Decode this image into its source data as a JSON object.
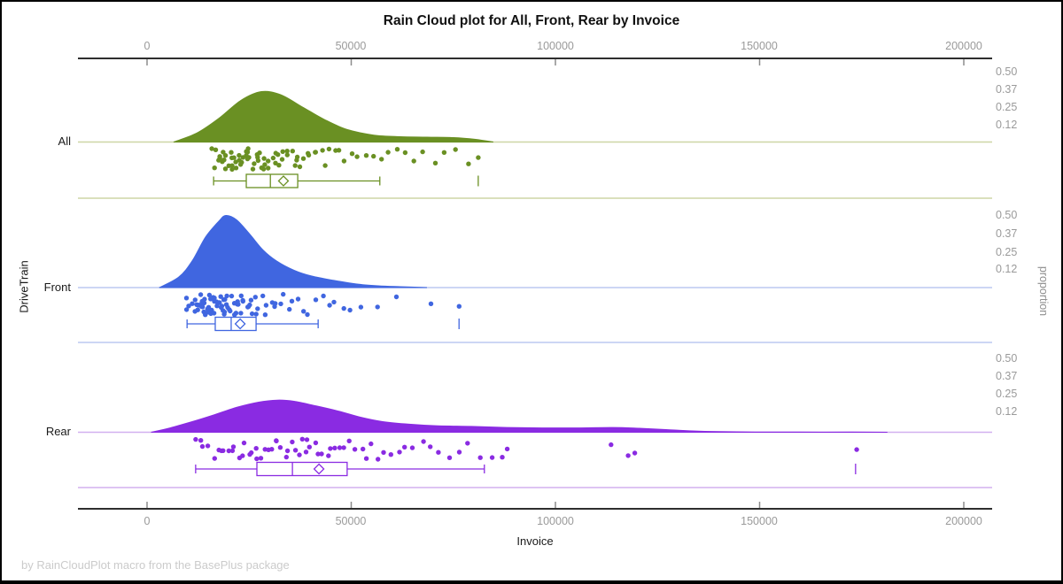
{
  "title": "Rain Cloud plot for All, Front, Rear by Invoice",
  "footer": "by RainCloudPlot macro from the BasePlus package",
  "x_axis": {
    "label": "Invoice",
    "ticks": [
      {
        "value": 0,
        "label": "0"
      },
      {
        "value": 50000,
        "label": "50000"
      },
      {
        "value": 100000,
        "label": "100000"
      },
      {
        "value": 150000,
        "label": "150000"
      },
      {
        "value": 200000,
        "label": "200000"
      }
    ]
  },
  "y_axis": {
    "label": "DriveTrain"
  },
  "right_axis": {
    "label": "proportion",
    "tick_labels": [
      "0.50",
      "0.37",
      "0.25",
      "0.12"
    ],
    "tick_values": [
      0.5,
      0.37,
      0.25,
      0.12
    ]
  },
  "chart_data": {
    "type": "raincloud",
    "title": "Rain Cloud plot for All, Front, Rear by Invoice",
    "xlabel": "Invoice",
    "ylabel": "DriveTrain",
    "right_label": "proportion",
    "xlim": [
      -17000,
      207000
    ],
    "x_ticks": [
      0,
      50000,
      100000,
      150000,
      200000
    ],
    "proportion_ticks": [
      0.5,
      0.37,
      0.25,
      0.12
    ],
    "groups": [
      {
        "name": "All",
        "color": "#6A9023",
        "light_color": "#cdd6a6",
        "density": [
          [
            6500,
            0
          ],
          [
            12150,
            0.064
          ],
          [
            17570,
            0.17
          ],
          [
            22990,
            0.3
          ],
          [
            27980,
            0.363
          ],
          [
            32750,
            0.34
          ],
          [
            38170,
            0.25
          ],
          [
            43590,
            0.16
          ],
          [
            49010,
            0.09
          ],
          [
            55530,
            0.05
          ],
          [
            62030,
            0.038
          ],
          [
            68540,
            0.035
          ],
          [
            75050,
            0.032
          ],
          [
            80470,
            0.019
          ],
          [
            84800,
            0
          ]
        ],
        "box": {
          "whisker_low": 16300,
          "q1": 24300,
          "median": 30200,
          "q3": 36900,
          "whisker_high": 57000,
          "mean": 33400,
          "outliers": [
            81100
          ]
        },
        "points": [
          16400,
          16800,
          17200,
          17500,
          17800,
          18100,
          18400,
          18700,
          19000,
          19300,
          19600,
          19900,
          20200,
          20500,
          20800,
          21100,
          21400,
          21700,
          22000,
          22300,
          22600,
          22900,
          23200,
          23500,
          23800,
          24100,
          24400,
          24700,
          25000,
          25300,
          25700,
          26100,
          26500,
          26900,
          27300,
          27700,
          28100,
          28500,
          28900,
          29300,
          29700,
          30100,
          30500,
          31000,
          31500,
          32000,
          32500,
          33000,
          33500,
          34000,
          34600,
          35200,
          35800,
          36400,
          37000,
          37700,
          38400,
          39100,
          39900,
          40700,
          41600,
          42500,
          43500,
          44600,
          45800,
          47100,
          48500,
          50000,
          51600,
          53300,
          55100,
          57000,
          59000,
          61100,
          63300,
          65600,
          68000,
          70500,
          73100,
          75800,
          78600,
          81100
        ]
      },
      {
        "name": "Front",
        "color": "#4066E0",
        "light_color": "#bcc9f0",
        "density": [
          [
            3000,
            0
          ],
          [
            7810,
            0.074
          ],
          [
            11060,
            0.185
          ],
          [
            14320,
            0.35
          ],
          [
            17570,
            0.46
          ],
          [
            19300,
            0.5
          ],
          [
            21910,
            0.47
          ],
          [
            25160,
            0.37
          ],
          [
            28420,
            0.26
          ],
          [
            31670,
            0.185
          ],
          [
            36010,
            0.12
          ],
          [
            40340,
            0.08
          ],
          [
            45770,
            0.05
          ],
          [
            51190,
            0.025
          ],
          [
            56610,
            0.012
          ],
          [
            62030,
            0.006
          ],
          [
            68540,
            0
          ]
        ],
        "box": {
          "whisker_low": 9800,
          "q1": 16700,
          "median": 20600,
          "q3": 26700,
          "whisker_high": 41900,
          "mean": 22800,
          "outliers": [
            76400
          ]
        },
        "points": [
          9800,
          10200,
          10600,
          11000,
          11300,
          11600,
          11900,
          12200,
          12500,
          12800,
          13000,
          13200,
          13400,
          13600,
          13800,
          14000,
          14200,
          14400,
          14600,
          14800,
          15000,
          15200,
          15400,
          15600,
          15800,
          16000,
          16200,
          16400,
          16600,
          16800,
          17000,
          17200,
          17400,
          17600,
          17800,
          18000,
          18200,
          18400,
          18600,
          18800,
          19000,
          19200,
          19400,
          19600,
          19800,
          20000,
          20300,
          20600,
          20900,
          21200,
          21500,
          21800,
          22100,
          22400,
          22700,
          23000,
          23400,
          23800,
          24200,
          24600,
          25000,
          25500,
          26000,
          26500,
          27000,
          27600,
          28200,
          28800,
          29500,
          30200,
          31000,
          31800,
          32700,
          33600,
          34600,
          35700,
          36900,
          38200,
          39600,
          41100,
          42700,
          44400,
          46200,
          48100,
          50100,
          52300,
          56000,
          61000,
          70000,
          76400
        ]
      },
      {
        "name": "Rear",
        "color": "#8A2BE2",
        "light_color": "#d2b0ef",
        "density": [
          [
            1000,
            0
          ],
          [
            5640,
            0.03
          ],
          [
            11060,
            0.073
          ],
          [
            16480,
            0.12
          ],
          [
            21910,
            0.17
          ],
          [
            27330,
            0.206
          ],
          [
            31880,
            0.22
          ],
          [
            36010,
            0.212
          ],
          [
            41430,
            0.18
          ],
          [
            46850,
            0.145
          ],
          [
            52270,
            0.103
          ],
          [
            57690,
            0.073
          ],
          [
            64200,
            0.055
          ],
          [
            70710,
            0.045
          ],
          [
            79380,
            0.04
          ],
          [
            88060,
            0.033
          ],
          [
            96730,
            0.03
          ],
          [
            105400,
            0.03
          ],
          [
            114080,
            0.033
          ],
          [
            120590,
            0.027
          ],
          [
            127100,
            0.018
          ],
          [
            133600,
            0.009
          ],
          [
            140100,
            0.004
          ],
          [
            148800,
            0.002
          ],
          [
            159600,
            0.001
          ],
          [
            172600,
            0.001
          ],
          [
            181300,
            0
          ]
        ],
        "box": {
          "whisker_low": 11900,
          "q1": 26900,
          "median": 35600,
          "q3": 49000,
          "whisker_high": 82600,
          "mean": 42100,
          "outliers": [
            173500
          ]
        },
        "points": [
          11900,
          13000,
          14100,
          15200,
          16200,
          17200,
          18100,
          19000,
          19900,
          20800,
          21600,
          22400,
          23200,
          24000,
          24800,
          25600,
          26400,
          27200,
          28000,
          28800,
          29600,
          30400,
          31200,
          32000,
          32800,
          33600,
          34400,
          35200,
          36000,
          36800,
          37600,
          38500,
          39400,
          40300,
          41200,
          42200,
          43200,
          44200,
          45300,
          46400,
          47500,
          48700,
          49900,
          51200,
          52500,
          53900,
          55300,
          56800,
          58400,
          60000,
          61700,
          63500,
          65400,
          67400,
          69500,
          71700,
          74000,
          76400,
          78900,
          81500,
          84200,
          86500,
          88500,
          113400,
          117900,
          119700,
          173500
        ]
      }
    ]
  }
}
